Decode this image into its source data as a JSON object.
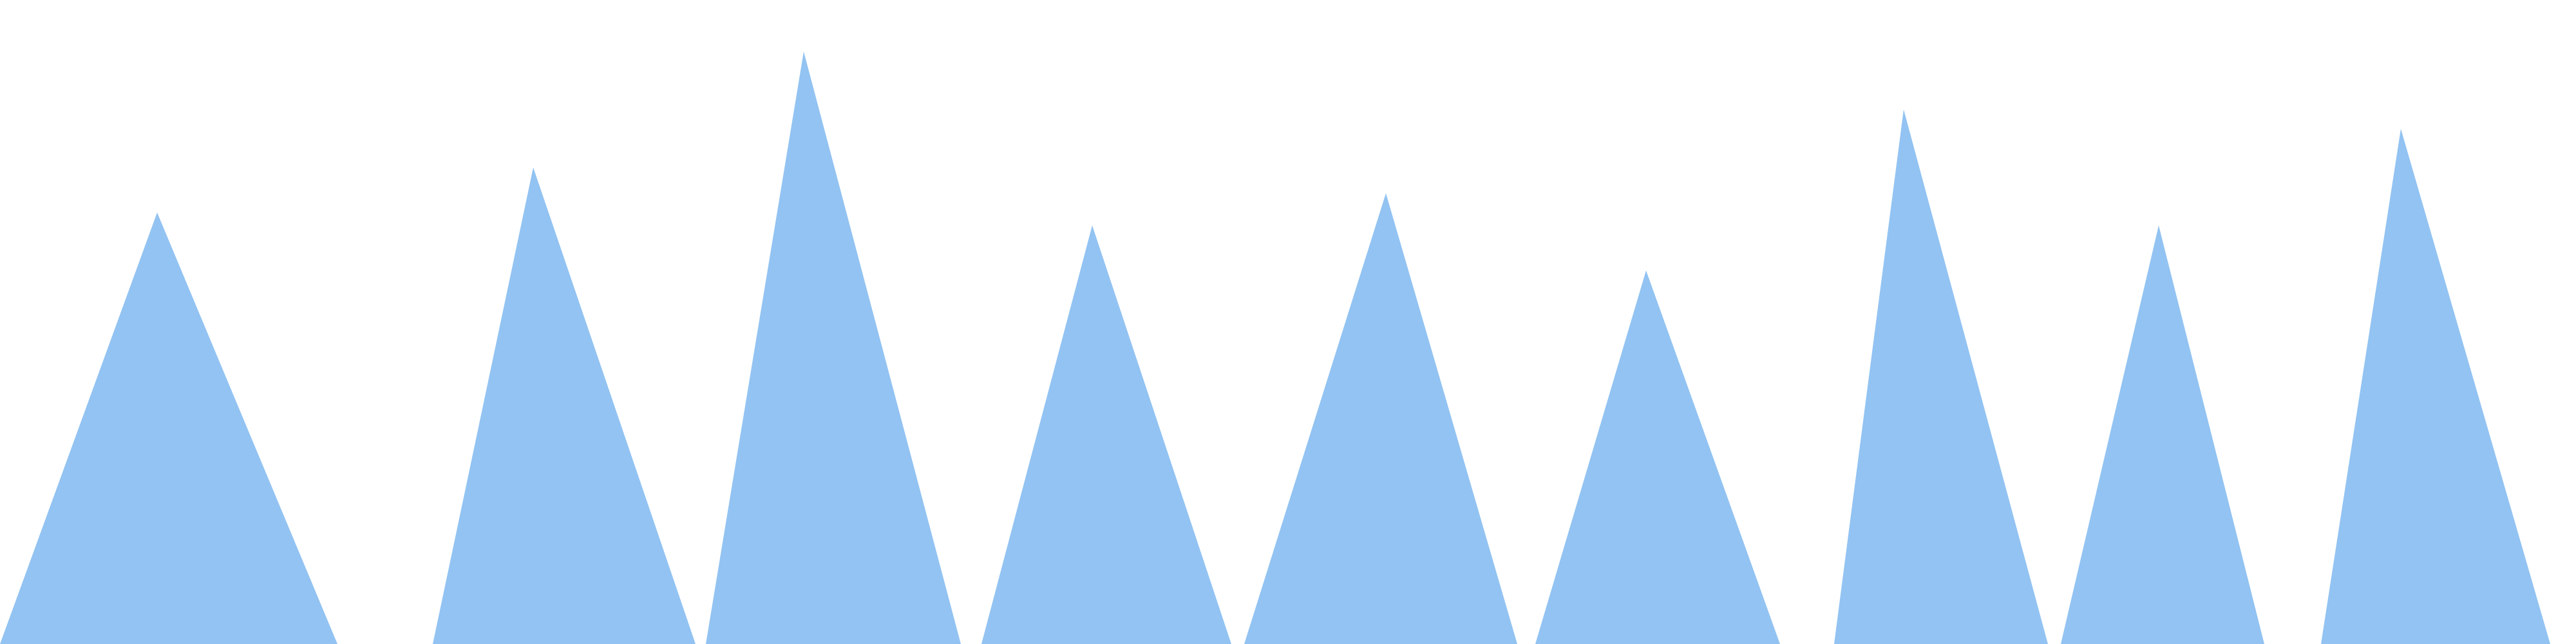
{
  "colors": {
    "background": "#ffffff",
    "peak_fill": "#92c3f2"
  },
  "chart_data": {
    "type": "area",
    "title": "",
    "xlabel": "",
    "ylabel": "",
    "grid": false,
    "legend": "none",
    "ylim": [
      0,
      1
    ],
    "peaks": [
      {
        "left": 0.0,
        "apex": 0.061,
        "right": 0.131,
        "height": 0.67
      },
      {
        "left": 0.168,
        "apex": 0.207,
        "right": 0.27,
        "height": 0.74
      },
      {
        "left": 0.274,
        "apex": 0.312,
        "right": 0.373,
        "height": 0.92
      },
      {
        "left": 0.381,
        "apex": 0.424,
        "right": 0.478,
        "height": 0.65
      },
      {
        "left": 0.483,
        "apex": 0.538,
        "right": 0.589,
        "height": 0.7
      },
      {
        "left": 0.596,
        "apex": 0.639,
        "right": 0.691,
        "height": 0.58
      },
      {
        "left": 0.712,
        "apex": 0.739,
        "right": 0.795,
        "height": 0.83
      },
      {
        "left": 0.8,
        "apex": 0.838,
        "right": 0.879,
        "height": 0.65
      },
      {
        "left": 0.901,
        "apex": 0.932,
        "right": 0.99,
        "height": 0.8
      }
    ]
  }
}
